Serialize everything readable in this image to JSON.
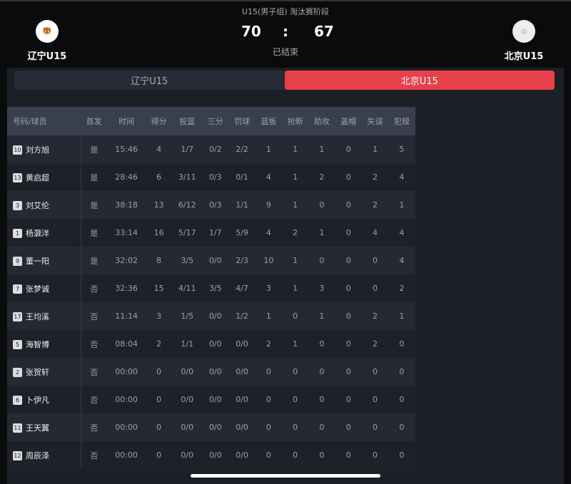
{
  "header": {
    "stage": "U15(男子组) 淘汰赛阶段",
    "home": {
      "name": "辽宁U15",
      "score": "70",
      "logo_icon": "team-logo"
    },
    "away": {
      "name": "北京U15",
      "score": "67",
      "logo_icon": "basketball-icon"
    },
    "separator": ":",
    "status": "已结束"
  },
  "tabs": [
    {
      "label": "辽宁U15",
      "active": false
    },
    {
      "label": "北京U15",
      "active": true
    }
  ],
  "accent": "#e8404a",
  "table": {
    "columns": [
      "号码/球员",
      "首发",
      "时间",
      "得分",
      "投篮",
      "三分",
      "罚球",
      "蓝板",
      "抢断",
      "助攻",
      "盖帽",
      "失误",
      "犯规"
    ],
    "rows": [
      {
        "num": "10",
        "name": "刘方旭",
        "cells": [
          "是",
          "15:46",
          "4",
          "1/7",
          "0/2",
          "2/2",
          "1",
          "1",
          "1",
          "0",
          "1",
          "5"
        ]
      },
      {
        "num": "13",
        "name": "黄启超",
        "cells": [
          "是",
          "28:46",
          "6",
          "3/11",
          "0/3",
          "0/1",
          "4",
          "1",
          "2",
          "0",
          "2",
          "4"
        ]
      },
      {
        "num": "3",
        "name": "刘艾伦",
        "cells": [
          "是",
          "38:18",
          "13",
          "6/12",
          "0/3",
          "1/1",
          "9",
          "1",
          "0",
          "0",
          "2",
          "1"
        ]
      },
      {
        "num": "1",
        "name": "杨灏洋",
        "cells": [
          "是",
          "33:14",
          "16",
          "5/17",
          "1/7",
          "5/9",
          "4",
          "2",
          "1",
          "0",
          "4",
          "4"
        ]
      },
      {
        "num": "9",
        "name": "董一阳",
        "cells": [
          "是",
          "32:02",
          "8",
          "3/5",
          "0/0",
          "2/3",
          "10",
          "1",
          "0",
          "0",
          "0",
          "4"
        ]
      },
      {
        "num": "7",
        "name": "张梦诚",
        "cells": [
          "否",
          "32:36",
          "15",
          "4/11",
          "3/5",
          "4/7",
          "3",
          "1",
          "3",
          "0",
          "0",
          "2"
        ]
      },
      {
        "num": "17",
        "name": "王均溪",
        "cells": [
          "否",
          "11:14",
          "3",
          "1/5",
          "0/0",
          "1/2",
          "1",
          "0",
          "1",
          "0",
          "2",
          "1"
        ]
      },
      {
        "num": "5",
        "name": "海智博",
        "cells": [
          "否",
          "08:04",
          "2",
          "1/1",
          "0/0",
          "0/0",
          "2",
          "1",
          "0",
          "0",
          "2",
          "0"
        ]
      },
      {
        "num": "2",
        "name": "张贺轩",
        "cells": [
          "否",
          "00:00",
          "0",
          "0/0",
          "0/0",
          "0/0",
          "0",
          "0",
          "0",
          "0",
          "0",
          "0"
        ]
      },
      {
        "num": "6",
        "name": "卜伊凡",
        "cells": [
          "否",
          "00:00",
          "0",
          "0/0",
          "0/0",
          "0/0",
          "0",
          "0",
          "0",
          "0",
          "0",
          "0"
        ]
      },
      {
        "num": "11",
        "name": "王天翼",
        "cells": [
          "否",
          "00:00",
          "0",
          "0/0",
          "0/0",
          "0/0",
          "0",
          "0",
          "0",
          "0",
          "0",
          "0"
        ]
      },
      {
        "num": "12",
        "name": "周辰泽",
        "cells": [
          "否",
          "00:00",
          "0",
          "0/0",
          "0/0",
          "0/0",
          "0",
          "0",
          "0",
          "0",
          "0",
          "0"
        ]
      }
    ]
  }
}
